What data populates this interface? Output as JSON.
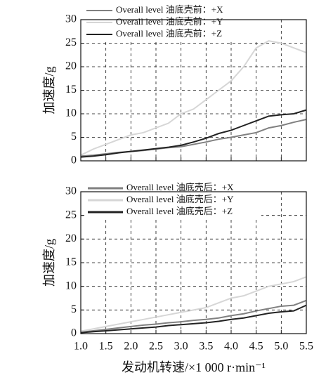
{
  "chart_data": [
    {
      "type": "line",
      "y_label": "加速度/g",
      "x": [
        1.0,
        1.25,
        1.5,
        1.75,
        2.0,
        2.25,
        2.5,
        2.75,
        3.0,
        3.25,
        3.5,
        3.75,
        4.0,
        4.25,
        4.5,
        4.75,
        5.0,
        5.25,
        5.5
      ],
      "series": [
        {
          "name": "Overall level 油底壳前：+X",
          "color": "#808080",
          "values": [
            1,
            1.2,
            1.5,
            1.8,
            2,
            2.2,
            2.5,
            2.8,
            3,
            3.5,
            4,
            4.6,
            5,
            5.5,
            6,
            7,
            7.5,
            8.2,
            8.8
          ]
        },
        {
          "name": "Overall level 油底壳前：+Y",
          "color": "#d6d6d6",
          "values": [
            1.2,
            2.5,
            3.5,
            4.5,
            5.5,
            6,
            7,
            8,
            10,
            11,
            13,
            15,
            17,
            20,
            24,
            25.5,
            25,
            24,
            23
          ]
        },
        {
          "name": "Overall level 油底壳前：+Z",
          "color": "#222222",
          "values": [
            0.8,
            1,
            1.3,
            1.7,
            2,
            2.3,
            2.6,
            2.9,
            3.3,
            4,
            4.8,
            5.8,
            6.5,
            7.5,
            8.5,
            9.5,
            9.8,
            10,
            10.8
          ]
        }
      ],
      "xlim": [
        1,
        5.5
      ],
      "xticks": [
        1,
        1.5,
        2,
        2.5,
        3,
        3.5,
        4,
        4.5,
        5,
        5.5
      ],
      "ylim": [
        0,
        30
      ],
      "yticks": [
        0,
        5,
        10,
        15,
        20,
        25,
        30
      ],
      "grid": true
    },
    {
      "type": "line",
      "y_label": "加速度/g",
      "x_label": "发动机转速/×1 000 r·min⁻¹",
      "x": [
        1.0,
        1.25,
        1.5,
        1.75,
        2.0,
        2.25,
        2.5,
        2.75,
        3.0,
        3.25,
        3.5,
        3.75,
        4.0,
        4.25,
        4.5,
        4.75,
        5.0,
        5.25,
        5.5
      ],
      "series": [
        {
          "name": "Overall level 油底壳后：+X",
          "color": "#808080",
          "values": [
            0.3,
            0.6,
            0.9,
            1.2,
            1.5,
            1.8,
            2,
            2.3,
            2.5,
            2.8,
            3,
            3.3,
            3.8,
            4.2,
            4.8,
            5.3,
            5.8,
            6,
            7
          ]
        },
        {
          "name": "Overall level 油底壳后：+Y",
          "color": "#d6d6d6",
          "values": [
            0.5,
            1,
            1.5,
            2,
            2.5,
            3,
            3.5,
            4,
            4.5,
            5,
            5.5,
            6.5,
            7.5,
            8,
            9,
            10,
            10.5,
            11,
            12
          ]
        },
        {
          "name": "Overall level 油底壳后：+Z",
          "color": "#222222",
          "values": [
            0.2,
            0.4,
            0.6,
            0.8,
            1,
            1.2,
            1.4,
            1.7,
            1.9,
            2.1,
            2.3,
            2.6,
            3,
            3.3,
            3.8,
            4.3,
            4.6,
            4.8,
            6
          ]
        }
      ],
      "xlim": [
        1,
        5.5
      ],
      "xticks": [
        {
          "value": 1,
          "label": "1.0"
        },
        1.5,
        {
          "value": 2,
          "label": "2.0"
        },
        2.5,
        {
          "value": 3,
          "label": "3.0"
        },
        3.5,
        {
          "value": 4,
          "label": "4.0"
        },
        4.5,
        {
          "value": 5,
          "label": "5.0"
        },
        5.5
      ],
      "ylim": [
        0,
        30
      ],
      "yticks": [
        0,
        5,
        10,
        15,
        20,
        25,
        30
      ],
      "grid": true
    }
  ]
}
